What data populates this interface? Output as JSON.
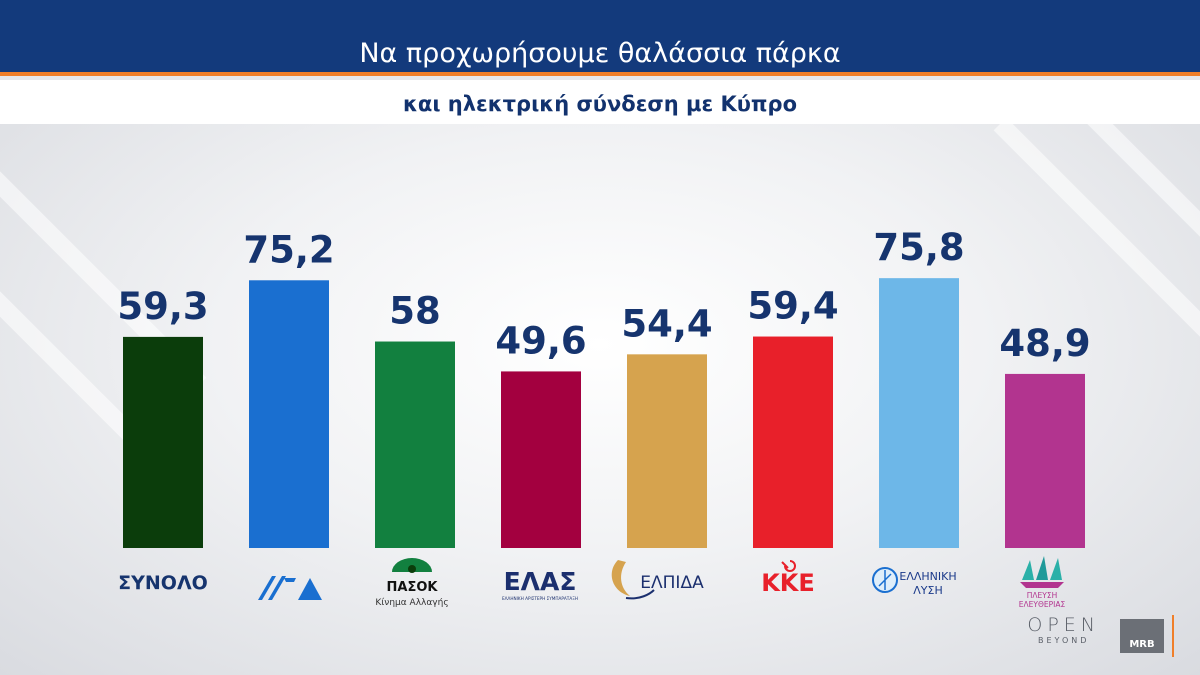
{
  "header": {
    "title": "Να προχωρήσουμε θαλάσσια πάρκα",
    "subtitle": "και ηλεκτρική σύνδεση με Κύπρο"
  },
  "chart_data": {
    "type": "bar",
    "categories": [
      "ΣΥΝΟΛΟ",
      "ΝΔ",
      "ΠΑΣΟΚ",
      "ΕΛΑΣ",
      "ΕΛΠΙΔΑ",
      "ΚΚΕ",
      "ΕΛΛΗΝΙΚΗ ΛΥΣΗ",
      "ΠΛΕΥΣΗ ΕΛΕΥΘΕΡΙΑΣ"
    ],
    "values": [
      59.3,
      75.2,
      58,
      49.6,
      54.4,
      59.4,
      75.8,
      48.9
    ],
    "labels": [
      "59,3",
      "75,2",
      "58",
      "49,6",
      "54,4",
      "59,4",
      "75,8",
      "48,9"
    ],
    "colors": [
      "#0b3d0b",
      "#1a6fd0",
      "#12803f",
      "#a3003f",
      "#d6a34e",
      "#e8202a",
      "#6db7e8",
      "#b2348f"
    ],
    "label_color": "#16346e",
    "ylim": [
      0,
      100
    ],
    "grid": false,
    "legend": "none"
  },
  "logos": {
    "total": "ΣΥΝΟΛΟ",
    "nd": "ΝΔ",
    "pasok": "ΠΑΣΟΚ",
    "pasok_sub": "Κίνημα Αλλαγής",
    "elas": "ΕΛΑΣ",
    "elas_sub": "ΕΛΛΗΝΙΚΗ ΑΡΙΣΤΕΡΗ ΣΥΜΠΑΡΑΤΑΞΗ",
    "elpida": "ΕΛΠΙΔΑ",
    "kke": "ΚΚΕ",
    "ell_lysi_1": "ΕΛΛΗΝΙΚΗ",
    "ell_lysi_2": "ΛΥΣΗ",
    "plefsi_1": "ΠΛΕΥΣΗ",
    "plefsi_2": "ΕΛΕΥΘΕΡΙΑΣ"
  },
  "brand": {
    "open": "OPEN",
    "beyond": "BEYOND",
    "mrb": "MRB"
  }
}
